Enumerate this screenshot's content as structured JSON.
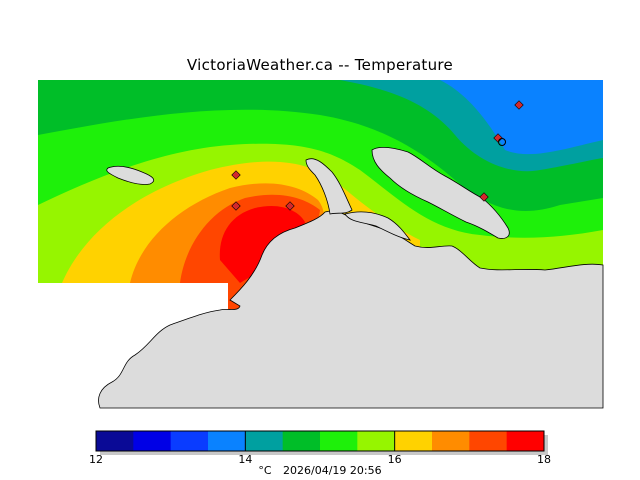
{
  "title": "VictoriaWeather.ca -- Temperature",
  "legend": {
    "unit": "°C",
    "timestamp": "2026/04/19 20:56",
    "min": 12,
    "max": 18,
    "ticks": [
      {
        "value": 12,
        "label": "12"
      },
      {
        "value": 14,
        "label": "14"
      },
      {
        "value": 16,
        "label": "16"
      },
      {
        "value": 18,
        "label": "18"
      }
    ],
    "colors": [
      "#0a0a96",
      "#0000e6",
      "#0a3cff",
      "#0a82ff",
      "#00a0a0",
      "#00be28",
      "#1ef00a",
      "#96f500",
      "#ffd200",
      "#ff8c00",
      "#ff4600",
      "#ff0000"
    ]
  },
  "map": {
    "land_color": "#dcdcdc",
    "station_marker_color": "#d2282d",
    "station_markers": 6
  }
}
